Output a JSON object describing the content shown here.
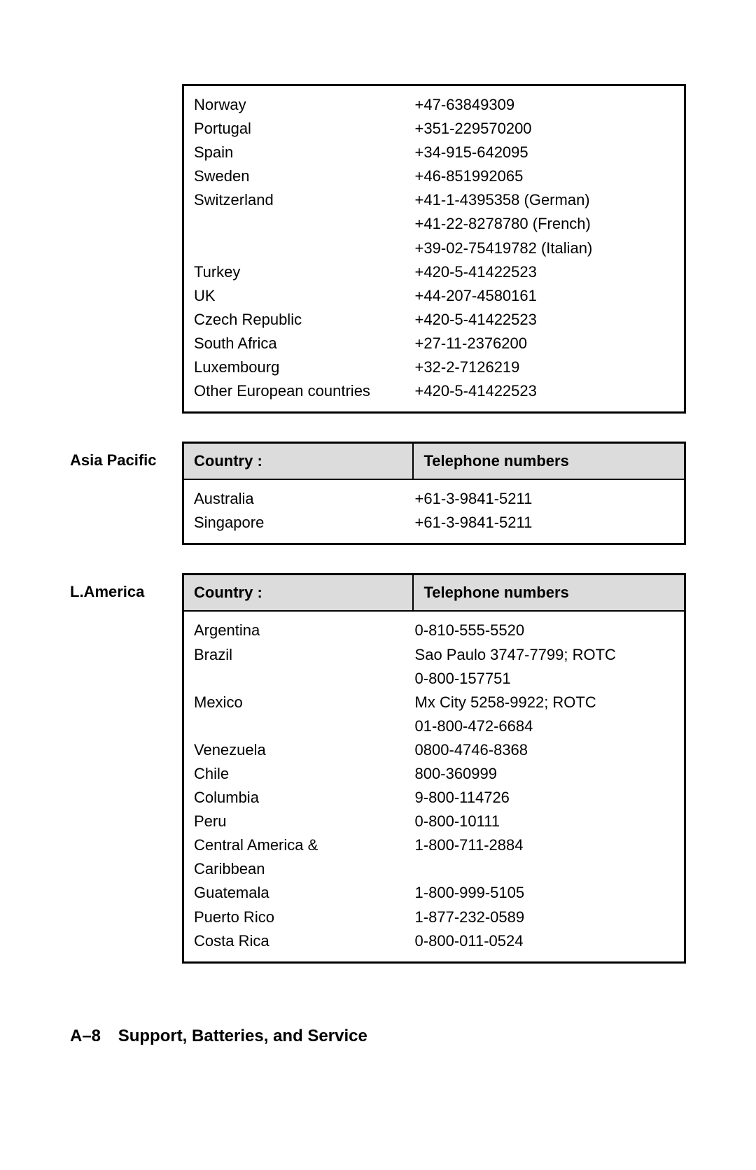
{
  "footer": {
    "page": "A–8",
    "title": "Support, Batteries, and Service"
  },
  "headers": {
    "country": "Country :",
    "phone": "Telephone numbers"
  },
  "sections": [
    {
      "region": "",
      "showHeader": false,
      "rows": [
        {
          "country": "Norway",
          "phone": "+47-63849309"
        },
        {
          "country": "Portugal",
          "phone": "+351-229570200"
        },
        {
          "country": "Spain",
          "phone": "+34-915-642095"
        },
        {
          "country": "Sweden",
          "phone": "+46-851992065"
        },
        {
          "country": "Switzerland",
          "phone": "+41-1-4395358 (German)"
        },
        {
          "country": "",
          "phone": "+41-22-8278780 (French)"
        },
        {
          "country": "",
          "phone": "+39-02-75419782 (Italian)"
        },
        {
          "country": "Turkey",
          "phone": "+420-5-41422523"
        },
        {
          "country": "UK",
          "phone": "+44-207-4580161"
        },
        {
          "country": "Czech Republic",
          "phone": "+420-5-41422523"
        },
        {
          "country": "South Africa",
          "phone": "+27-11-2376200"
        },
        {
          "country": "Luxembourg",
          "phone": "+32-2-7126219"
        },
        {
          "country": "Other European countries",
          "phone": "+420-5-41422523"
        }
      ]
    },
    {
      "region": "Asia Pacific",
      "showHeader": true,
      "rows": [
        {
          "country": "Australia",
          "phone": "+61-3-9841-5211"
        },
        {
          "country": "Singapore",
          "phone": "+61-3-9841-5211"
        }
      ]
    },
    {
      "region": "L.America",
      "showHeader": true,
      "rows": [
        {
          "country": "Argentina",
          "phone": "0-810-555-5520"
        },
        {
          "country": "Brazil",
          "phone": "Sao Paulo 3747-7799; ROTC"
        },
        {
          "country": "",
          "phone": "0-800-157751"
        },
        {
          "country": "Mexico",
          "phone": "Mx City 5258-9922; ROTC"
        },
        {
          "country": "",
          "phone": "01-800-472-6684"
        },
        {
          "country": "Venezuela",
          "phone": "0800-4746-8368"
        },
        {
          "country": "Chile",
          "phone": "800-360999"
        },
        {
          "country": "Columbia",
          "phone": "9-800-114726"
        },
        {
          "country": "Peru",
          "phone": "0-800-10111"
        },
        {
          "country": "Central America &",
          "phone": "1-800-711-2884"
        },
        {
          "country": "Caribbean",
          "phone": ""
        },
        {
          "country": "Guatemala",
          "phone": "1-800-999-5105"
        },
        {
          "country": "Puerto Rico",
          "phone": "1-877-232-0589"
        },
        {
          "country": "Costa Rica",
          "phone": "0-800-011-0524"
        }
      ]
    }
  ]
}
